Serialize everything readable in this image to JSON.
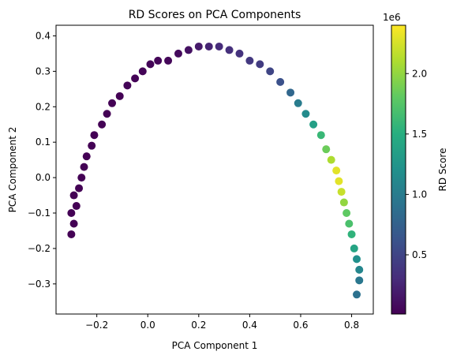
{
  "chart_data": {
    "type": "scatter",
    "title": "RD Scores on PCA Components",
    "xlabel": "PCA Component 1",
    "ylabel": "PCA Component 2",
    "xlim": [
      -0.36,
      0.885
    ],
    "ylim": [
      -0.385,
      0.43
    ],
    "xticks": [
      -0.2,
      0.0,
      0.2,
      0.4,
      0.6,
      0.8
    ],
    "xtick_labels": [
      "−0.2",
      "0.0",
      "0.2",
      "0.4",
      "0.6",
      "0.8"
    ],
    "yticks": [
      -0.3,
      -0.2,
      -0.1,
      0.0,
      0.1,
      0.2,
      0.3,
      0.4
    ],
    "ytick_labels": [
      "−0.3",
      "−0.2",
      "−0.1",
      "0.0",
      "0.1",
      "0.2",
      "0.3",
      "0.4"
    ],
    "grid": false,
    "colormap": "viridis",
    "colorbar": {
      "label": "RD Score",
      "offset_text": "1e6",
      "range": [
        10000,
        2400000
      ],
      "ticks": [
        0.5,
        1.0,
        1.5,
        2.0
      ],
      "tick_values": [
        500000,
        1000000,
        1500000,
        2000000
      ],
      "tick_labels": [
        "0.5",
        "1.0",
        "1.5",
        "2.0"
      ]
    },
    "points": [
      {
        "x": -0.3,
        "y": -0.16,
        "c": 20000
      },
      {
        "x": -0.29,
        "y": -0.13,
        "c": 20000
      },
      {
        "x": -0.3,
        "y": -0.1,
        "c": 20000
      },
      {
        "x": -0.28,
        "y": -0.08,
        "c": 20000
      },
      {
        "x": -0.29,
        "y": -0.05,
        "c": 20000
      },
      {
        "x": -0.27,
        "y": -0.03,
        "c": 20000
      },
      {
        "x": -0.26,
        "y": 0.0,
        "c": 20000
      },
      {
        "x": -0.25,
        "y": 0.03,
        "c": 20000
      },
      {
        "x": -0.24,
        "y": 0.06,
        "c": 20000
      },
      {
        "x": -0.22,
        "y": 0.09,
        "c": 20000
      },
      {
        "x": -0.21,
        "y": 0.12,
        "c": 20000
      },
      {
        "x": -0.18,
        "y": 0.15,
        "c": 20000
      },
      {
        "x": -0.16,
        "y": 0.18,
        "c": 20000
      },
      {
        "x": -0.14,
        "y": 0.21,
        "c": 20000
      },
      {
        "x": -0.11,
        "y": 0.23,
        "c": 20000
      },
      {
        "x": -0.08,
        "y": 0.26,
        "c": 30000
      },
      {
        "x": -0.05,
        "y": 0.28,
        "c": 30000
      },
      {
        "x": -0.02,
        "y": 0.3,
        "c": 30000
      },
      {
        "x": 0.01,
        "y": 0.32,
        "c": 40000
      },
      {
        "x": 0.04,
        "y": 0.33,
        "c": 40000
      },
      {
        "x": 0.08,
        "y": 0.33,
        "c": 50000
      },
      {
        "x": 0.12,
        "y": 0.35,
        "c": 80000
      },
      {
        "x": 0.16,
        "y": 0.36,
        "c": 120000
      },
      {
        "x": 0.2,
        "y": 0.37,
        "c": 180000
      },
      {
        "x": 0.24,
        "y": 0.37,
        "c": 250000
      },
      {
        "x": 0.28,
        "y": 0.37,
        "c": 300000
      },
      {
        "x": 0.32,
        "y": 0.36,
        "c": 330000
      },
      {
        "x": 0.36,
        "y": 0.35,
        "c": 360000
      },
      {
        "x": 0.4,
        "y": 0.33,
        "c": 400000
      },
      {
        "x": 0.44,
        "y": 0.32,
        "c": 430000
      },
      {
        "x": 0.48,
        "y": 0.3,
        "c": 500000
      },
      {
        "x": 0.52,
        "y": 0.27,
        "c": 600000
      },
      {
        "x": 0.56,
        "y": 0.24,
        "c": 800000
      },
      {
        "x": 0.59,
        "y": 0.21,
        "c": 1000000
      },
      {
        "x": 0.62,
        "y": 0.18,
        "c": 1150000
      },
      {
        "x": 0.65,
        "y": 0.15,
        "c": 1350000
      },
      {
        "x": 0.68,
        "y": 0.12,
        "c": 1600000
      },
      {
        "x": 0.7,
        "y": 0.08,
        "c": 1850000
      },
      {
        "x": 0.72,
        "y": 0.05,
        "c": 2100000
      },
      {
        "x": 0.74,
        "y": 0.02,
        "c": 2300000
      },
      {
        "x": 0.75,
        "y": -0.01,
        "c": 2300000
      },
      {
        "x": 0.76,
        "y": -0.04,
        "c": 2200000
      },
      {
        "x": 0.77,
        "y": -0.07,
        "c": 2000000
      },
      {
        "x": 0.78,
        "y": -0.1,
        "c": 1800000
      },
      {
        "x": 0.79,
        "y": -0.13,
        "c": 1700000
      },
      {
        "x": 0.8,
        "y": -0.16,
        "c": 1550000
      },
      {
        "x": 0.81,
        "y": -0.2,
        "c": 1400000
      },
      {
        "x": 0.82,
        "y": -0.23,
        "c": 1200000
      },
      {
        "x": 0.83,
        "y": -0.26,
        "c": 1100000
      },
      {
        "x": 0.83,
        "y": -0.29,
        "c": 950000
      },
      {
        "x": 0.82,
        "y": -0.33,
        "c": 900000
      }
    ]
  }
}
